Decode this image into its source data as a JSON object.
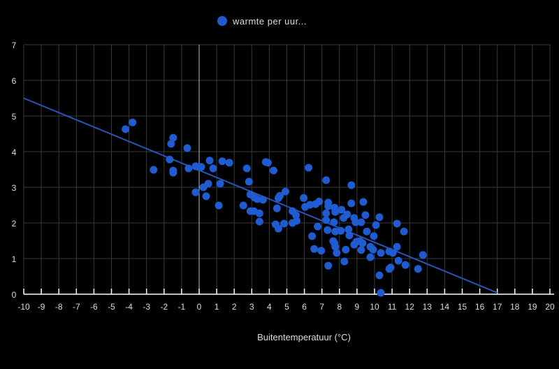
{
  "chart_data": {
    "type": "scatter",
    "title": "",
    "legend": {
      "label": "warmte per uur...",
      "placement": "top-center"
    },
    "xlabel": "Buitentemperatuur (°C)",
    "ylabel": "",
    "xlim": [
      -10,
      20
    ],
    "ylim": [
      0,
      7
    ],
    "xticks": [
      -10,
      -9,
      -8,
      -7,
      -6,
      -5,
      -4,
      -3,
      -2,
      -1,
      0,
      1,
      2,
      3,
      4,
      5,
      6,
      7,
      8,
      9,
      10,
      11,
      12,
      13,
      14,
      15,
      16,
      17,
      18,
      19,
      20
    ],
    "yticks": [
      0,
      1,
      2,
      3,
      4,
      5,
      6,
      7
    ],
    "grid": true,
    "colors": {
      "point": "#1f5bd1",
      "trend": "#2a55b8",
      "grid": "#3a3a3a",
      "zero_line": "#bbbbbb",
      "axis": "#ffffff"
    },
    "trendline": {
      "x": [
        -10,
        17
      ],
      "y": [
        5.5,
        0.04
      ]
    },
    "points": [
      [
        -4.2,
        4.63
      ],
      [
        -3.8,
        4.82
      ],
      [
        -1.48,
        4.39
      ],
      [
        -1.6,
        4.22
      ],
      [
        -0.68,
        4.1
      ],
      [
        -1.68,
        3.78
      ],
      [
        -2.6,
        3.49
      ],
      [
        -1.48,
        3.47
      ],
      [
        -1.48,
        3.41
      ],
      [
        -0.6,
        3.53
      ],
      [
        -0.2,
        3.59
      ],
      [
        -0.04,
        3.57
      ],
      [
        0.12,
        3.57
      ],
      [
        0.6,
        3.75
      ],
      [
        0.8,
        3.53
      ],
      [
        1.32,
        3.73
      ],
      [
        1.72,
        3.69
      ],
      [
        2.72,
        3.53
      ],
      [
        3.8,
        3.71
      ],
      [
        2.84,
        3.16
      ],
      [
        1.2,
        3.1
      ],
      [
        0.52,
        3.1
      ],
      [
        0.24,
        3.0
      ],
      [
        -0.2,
        2.86
      ],
      [
        0.4,
        2.75
      ],
      [
        1.12,
        2.49
      ],
      [
        2.52,
        2.49
      ],
      [
        2.92,
        2.8
      ],
      [
        3.16,
        2.71
      ],
      [
        3.32,
        2.67
      ],
      [
        3.64,
        2.65
      ],
      [
        2.92,
        2.33
      ],
      [
        3.12,
        2.33
      ],
      [
        3.44,
        2.27
      ],
      [
        3.44,
        2.04
      ],
      [
        3.92,
        3.69
      ],
      [
        4.24,
        3.47
      ],
      [
        6.24,
        3.55
      ],
      [
        7.24,
        3.2
      ],
      [
        8.68,
        3.06
      ],
      [
        4.92,
        2.88
      ],
      [
        4.6,
        2.76
      ],
      [
        4.52,
        2.7
      ],
      [
        4.44,
        2.41
      ],
      [
        5.96,
        2.7
      ],
      [
        6.04,
        2.45
      ],
      [
        6.32,
        2.51
      ],
      [
        6.64,
        2.53
      ],
      [
        6.84,
        2.6
      ],
      [
        7.36,
        2.57
      ],
      [
        7.36,
        2.47
      ],
      [
        7.72,
        2.43
      ],
      [
        8.12,
        2.37
      ],
      [
        8.44,
        2.24
      ],
      [
        8.68,
        2.55
      ],
      [
        9.36,
        2.59
      ],
      [
        7.24,
        2.27
      ],
      [
        7.76,
        2.31
      ],
      [
        8.24,
        2.14
      ],
      [
        8.84,
        2.14
      ],
      [
        8.92,
        2.02
      ],
      [
        9.24,
        2.02
      ],
      [
        9.48,
        2.22
      ],
      [
        10.28,
        2.16
      ],
      [
        5.32,
        2.33
      ],
      [
        5.52,
        2.22
      ],
      [
        5.56,
        2.06
      ],
      [
        5.32,
        2.0
      ],
      [
        4.84,
        1.98
      ],
      [
        4.36,
        1.96
      ],
      [
        4.52,
        1.84
      ],
      [
        6.76,
        1.9
      ],
      [
        7.24,
        2.08
      ],
      [
        7.68,
        2.02
      ],
      [
        7.32,
        1.8
      ],
      [
        7.76,
        1.76
      ],
      [
        8.08,
        1.78
      ],
      [
        8.52,
        1.82
      ],
      [
        8.56,
        1.65
      ],
      [
        9.56,
        1.76
      ],
      [
        10.08,
        1.94
      ],
      [
        11.28,
        1.98
      ],
      [
        11.68,
        1.76
      ],
      [
        6.44,
        1.63
      ],
      [
        9.96,
        1.63
      ],
      [
        7.64,
        1.49
      ],
      [
        7.72,
        1.43
      ],
      [
        7.76,
        1.33
      ],
      [
        8.96,
        1.47
      ],
      [
        9.16,
        1.49
      ],
      [
        9.32,
        1.43
      ],
      [
        8.84,
        1.39
      ],
      [
        9.76,
        1.33
      ],
      [
        9.92,
        1.25
      ],
      [
        11.28,
        1.33
      ],
      [
        6.56,
        1.27
      ],
      [
        6.96,
        1.22
      ],
      [
        7.84,
        1.16
      ],
      [
        8.36,
        1.25
      ],
      [
        9.24,
        1.24
      ],
      [
        9.76,
        1.04
      ],
      [
        10.36,
        1.16
      ],
      [
        10.84,
        1.2
      ],
      [
        11.04,
        1.16
      ],
      [
        11.36,
        0.94
      ],
      [
        11.76,
        0.82
      ],
      [
        12.76,
        1.1
      ],
      [
        12.48,
        0.71
      ],
      [
        10.92,
        0.75
      ],
      [
        10.84,
        0.71
      ],
      [
        8.28,
        0.92
      ],
      [
        7.36,
        0.8
      ],
      [
        10.28,
        0.53
      ],
      [
        10.36,
        0.04
      ]
    ]
  }
}
